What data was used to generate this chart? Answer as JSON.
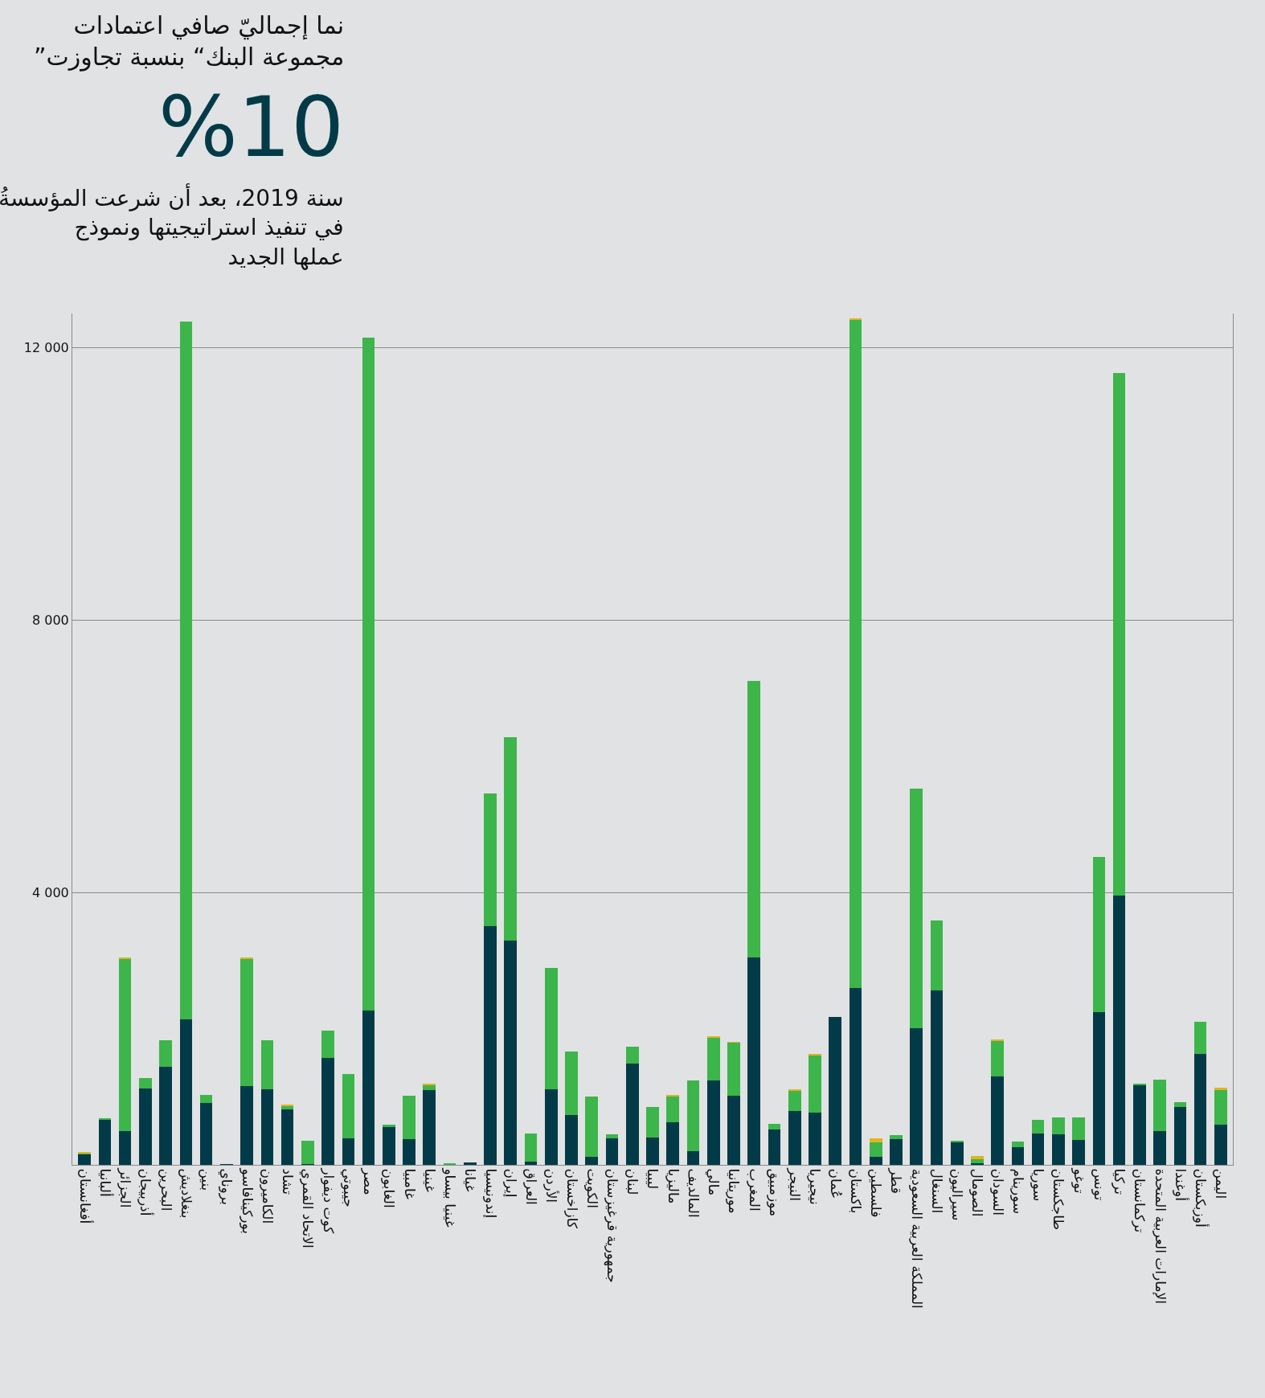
{
  "chart_data": {
    "type": "bar",
    "stacked": true,
    "title": "نما إجماليّ صافي اعتمادات\n”مجموعة البنك“ بنسبة تجاوزت",
    "subtitle": "%10",
    "annotations": [
      "سنة 2019، بعد أن شرعت المؤسسةُ\nفي تنفيذ استراتيجيتها ونموذج\nعملها الجديد"
    ],
    "categories": [
      "أفغانستان",
      "ألبانيا",
      "الجزائر",
      "أذربيجان",
      "البحرين",
      "بنغلاديش",
      "بنين",
      "بروناي",
      "بوركينافاسو",
      "الكاميرون",
      "تشاد",
      "الاتحاد القمري",
      "كوت ديفوار",
      "جيبوتي",
      "مصر",
      "الغابون",
      "غامبيا",
      "غينيا",
      "غينيا بيساو",
      "غيانا",
      "إندونيسيا",
      "إيران",
      "العراق",
      "الأردن",
      "كازاخستان",
      "الكويت",
      "جمهورية قرغيزستان",
      "لبنان",
      "ليبيا",
      "ماليزيا",
      "المالديف",
      "مالي",
      "موريتانيا",
      "المغرب",
      "موزمبيق",
      "النيجر",
      "نيجيريا",
      "عُمان",
      "باكستان",
      "فلسطين",
      "قطر",
      "المملكة العربية السعودية",
      "السنغال",
      "سيراليون",
      "الصومال",
      "السودان",
      "سورينام",
      "سوريا",
      "طاجكستان",
      "توغو",
      "تونس",
      "تركيا",
      "تركمانستان",
      "الإمارات العربية المتحدة",
      "أوغندا",
      "أوزبكستان",
      "اليمن"
    ],
    "series": [
      {
        "color": "#023b47",
        "values": [
          165,
          670,
          500,
          1120,
          1440,
          2140,
          910,
          10,
          1160,
          1110,
          815,
          10,
          1565,
          390,
          2265,
          560,
          375,
          1100,
          null,
          35,
          3505,
          3290,
          50,
          1105,
          735,
          115,
          395,
          1490,
          400,
          620,
          195,
          1245,
          1020,
          3050,
          525,
          790,
          765,
          2170,
          2600,
          120,
          380,
          2010,
          2565,
          325,
          20,
          1300,
          265,
          465,
          450,
          370,
          2240,
          3950,
          1180,
          490,
          855,
          1625,
          595
        ]
      },
      {
        "color": "#3cb54a",
        "values": [
          10,
          10,
          2525,
          150,
          390,
          10240,
          120,
          null,
          1870,
          715,
          55,
          345,
          405,
          945,
          9885,
          30,
          645,
          75,
          20,
          null,
          1945,
          2990,
          410,
          1785,
          935,
          885,
          50,
          245,
          450,
          390,
          1050,
          625,
          775,
          4060,
          75,
          300,
          845,
          null,
          9810,
          205,
          55,
          3510,
          1020,
          35,
          65,
          525,
          75,
          195,
          245,
          330,
          2280,
          7680,
          15,
          760,
          70,
          480,
          505
        ]
      },
      {
        "color": "#e0b41e",
        "values": [
          10,
          null,
          10,
          null,
          null,
          null,
          null,
          null,
          10,
          null,
          10,
          null,
          null,
          null,
          null,
          null,
          null,
          15,
          null,
          null,
          null,
          null,
          null,
          null,
          null,
          null,
          null,
          null,
          null,
          10,
          null,
          10,
          10,
          null,
          null,
          10,
          10,
          null,
          10,
          60,
          null,
          null,
          null,
          null,
          50,
          15,
          null,
          null,
          null,
          null,
          null,
          null,
          null,
          null,
          null,
          null,
          35
        ]
      }
    ],
    "ylim": [
      0,
      12500
    ],
    "yticks": [
      {
        "value": 4000,
        "label": "4 000"
      },
      {
        "value": 8000,
        "label": "8 000"
      },
      {
        "value": 12000,
        "label": "12 000"
      }
    ],
    "grid": "y"
  }
}
